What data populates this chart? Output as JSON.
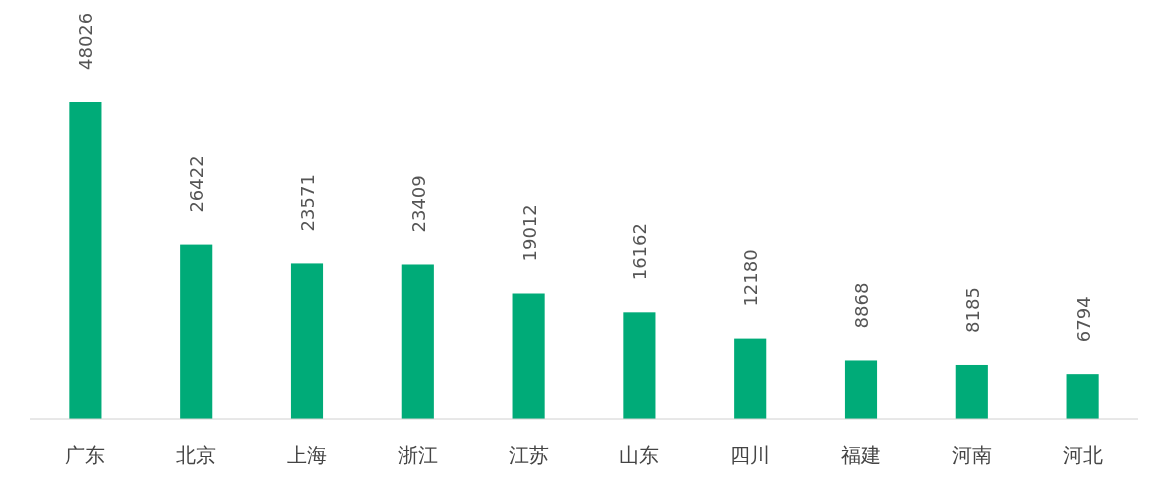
{
  "chart_data": {
    "type": "bar",
    "categories": [
      "广东",
      "北京",
      "上海",
      "浙江",
      "江苏",
      "山东",
      "四川",
      "福建",
      "河南",
      "河北"
    ],
    "values": [
      48026,
      26422,
      23571,
      23409,
      19012,
      16162,
      12180,
      8868,
      8185,
      6794
    ],
    "color": "#00ab78",
    "data_labels": true,
    "tick_labels": "x"
  }
}
